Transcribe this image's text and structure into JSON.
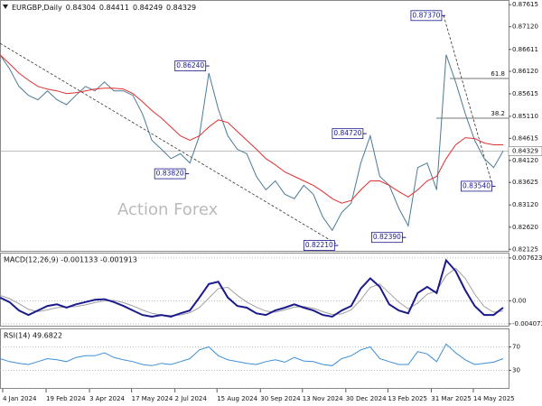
{
  "chart_data": [
    {
      "type": "line",
      "title": "EURGBP,Daily",
      "ohlc": [
        0.84304,
        0.84411,
        0.84249,
        0.84329
      ],
      "watermark": "Action Forex",
      "x": [
        0,
        7,
        14,
        21,
        28,
        35,
        42,
        49,
        56,
        63,
        70,
        77,
        84,
        91,
        98,
        105,
        112,
        119,
        126,
        133,
        140,
        147,
        154,
        161,
        168,
        175,
        182,
        189,
        196,
        203,
        210,
        217,
        224,
        231,
        238,
        245,
        252,
        259,
        266,
        273,
        280,
        287,
        294,
        301,
        308,
        315,
        322,
        329,
        336,
        343,
        350,
        357,
        364,
        371
      ],
      "xlim": [
        0,
        375
      ],
      "xticks": [
        {
          "value": 2,
          "label": "4 Jan 2024"
        },
        {
          "value": 34,
          "label": "19 Feb 2024"
        },
        {
          "value": 66,
          "label": "3 Apr 2024"
        },
        {
          "value": 97,
          "label": "17 May 2024"
        },
        {
          "value": 129,
          "label": "2 Jul 2024"
        },
        {
          "value": 160,
          "label": "15 Aug 2024"
        },
        {
          "value": 192,
          "label": "30 Sep 2024"
        },
        {
          "value": 223,
          "label": "13 Nov 2024"
        },
        {
          "value": 255,
          "label": "30 Dec 2024"
        },
        {
          "value": 286,
          "label": "13 Feb 2025"
        },
        {
          "value": 318,
          "label": "31 Mar 2025"
        },
        {
          "value": 349,
          "label": "14 May 2025"
        }
      ],
      "ylim": [
        0.8209,
        0.877
      ],
      "yticks": [
        0.87615,
        {
          "value": 0.8712,
          "label": "0.87120"
        },
        0.86611,
        {
          "value": 0.8612,
          "label": "0.86120"
        },
        0.85615,
        {
          "value": 0.8511,
          "label": "0.85110"
        },
        0.84615,
        {
          "value": 0.8412,
          "label": "0.84120"
        },
        0.83625,
        {
          "value": 0.8312,
          "label": "0.83120"
        },
        {
          "value": 0.8262,
          "label": "0.82620"
        },
        0.82125
      ],
      "last_price": 0.84329,
      "fib_labels": [
        "61.8",
        "38.2"
      ],
      "series": [
        {
          "color": "#4d7a96",
          "values": [
            0.8649,
            0.8618,
            0.8578,
            0.8558,
            0.8548,
            0.8568,
            0.8548,
            0.8537,
            0.8558,
            0.8578,
            0.8568,
            0.8588,
            0.8568,
            0.8568,
            0.8558,
            0.8517,
            0.8457,
            0.8437,
            0.8416,
            0.8427,
            0.8406,
            0.8467,
            0.8608,
            0.8527,
            0.8467,
            0.8437,
            0.8427,
            0.8376,
            0.8346,
            0.8366,
            0.8336,
            0.8326,
            0.8356,
            0.8336,
            0.8285,
            0.8255,
            0.8295,
            0.8316,
            0.8406,
            0.8467,
            0.8376,
            0.8356,
            0.8305,
            0.8265,
            0.8396,
            0.8406,
            0.8346,
            0.8649,
            0.8588,
            0.8517,
            0.8457,
            0.8416,
            0.8396,
            0.8433
          ]
        },
        {
          "color": "#e03030",
          "values": [
            0.8649,
            0.8629,
            0.8608,
            0.8592,
            0.8578,
            0.8572,
            0.8568,
            0.8562,
            0.8564,
            0.8568,
            0.8572,
            0.8574,
            0.8574,
            0.8572,
            0.8562,
            0.8544,
            0.8524,
            0.8507,
            0.8487,
            0.8467,
            0.8457,
            0.8467,
            0.8487,
            0.8503,
            0.8497,
            0.8477,
            0.8457,
            0.8437,
            0.8416,
            0.8402,
            0.8386,
            0.8376,
            0.8366,
            0.8356,
            0.8342,
            0.8326,
            0.8316,
            0.8322,
            0.8346,
            0.8366,
            0.8366,
            0.8356,
            0.8342,
            0.833,
            0.8346,
            0.8366,
            0.8376,
            0.8416,
            0.8447,
            0.8463,
            0.8461,
            0.8451,
            0.8447,
            0.8447
          ]
        }
      ],
      "annotations": [
        {
          "label": "0.86240",
          "x": 153,
          "y": 0.8624
        },
        {
          "label": "0.83820",
          "x": 138,
          "y": 0.8382
        },
        {
          "label": "0.84720",
          "x": 269,
          "y": 0.8472
        },
        {
          "label": "0.82210",
          "x": 248,
          "y": 0.8221
        },
        {
          "label": "0.82390",
          "x": 298,
          "y": 0.8239
        },
        {
          "label": "0.87370",
          "x": 327,
          "y": 0.8737
        },
        {
          "label": "0.83540",
          "x": 364,
          "y": 0.8354
        }
      ]
    },
    {
      "type": "line",
      "title": "MACD(12,26,9) -0.001133 -0.001913",
      "ylim": [
        -0.0044,
        0.0084
      ],
      "yticks": [
        0.007623,
        {
          "value": 0,
          "label": "0.00"
        },
        -0.004073
      ],
      "series": [
        {
          "color": "#a0a0a0",
          "values": [
            0.001,
            0.0004,
            -0.0005,
            -0.0015,
            -0.0019,
            -0.0016,
            -0.0012,
            -0.0011,
            -0.001,
            -0.0007,
            -0.0003,
            0,
            0.0001,
            -0.0003,
            -0.0009,
            -0.0016,
            -0.0022,
            -0.0025,
            -0.0026,
            -0.0025,
            -0.0021,
            -0.0012,
            0.0005,
            0.0022,
            0.0024,
            0.001,
            -0.0002,
            -0.0011,
            -0.0018,
            -0.002,
            -0.0016,
            -0.0011,
            -0.001,
            -0.0013,
            -0.0019,
            -0.0024,
            -0.0023,
            -0.0016,
            0.0002,
            0.0024,
            0.003,
            0.0014,
            -0.0002,
            -0.0014,
            -0.0004,
            0.0012,
            0.0018,
            0.0045,
            0.0058,
            0.004,
            0.0012,
            -0.001,
            -0.002,
            -0.0018
          ]
        },
        {
          "color": "#1a1a8c",
          "values": [
            0.0006,
            -0.0002,
            -0.0017,
            -0.0025,
            -0.0017,
            -0.0009,
            -0.0006,
            -0.0012,
            -0.0006,
            -0.0002,
            0.0002,
            0.0003,
            -0.0002,
            -0.0009,
            -0.0017,
            -0.0025,
            -0.0028,
            -0.0025,
            -0.0028,
            -0.0022,
            -0.0017,
            0.0006,
            0.003,
            0.0034,
            0.0006,
            -0.0009,
            -0.0012,
            -0.0022,
            -0.0025,
            -0.0017,
            -0.0012,
            -0.0006,
            -0.0012,
            -0.0017,
            -0.0025,
            -0.0028,
            -0.0017,
            -0.0009,
            0.0022,
            0.004,
            0.0025,
            -0.0006,
            -0.0017,
            -0.0022,
            0.0014,
            0.0025,
            0.0014,
            0.0072,
            0.0053,
            0.0019,
            -0.0009,
            -0.0025,
            -0.0025,
            -0.0012
          ]
        }
      ]
    },
    {
      "type": "line",
      "title": "RSI(14) 49.6822",
      "ylim": [
        0,
        100
      ],
      "yticks": [
        70,
        30
      ],
      "series": [
        {
          "color": "#3b8fd8",
          "values": [
            50,
            45,
            42,
            40,
            45,
            50,
            48,
            45,
            52,
            55,
            55,
            60,
            52,
            48,
            45,
            40,
            38,
            42,
            40,
            45,
            50,
            65,
            70,
            55,
            48,
            45,
            42,
            40,
            45,
            48,
            44,
            52,
            46,
            45,
            40,
            38,
            50,
            55,
            65,
            70,
            50,
            45,
            40,
            40,
            62,
            58,
            45,
            75,
            60,
            48,
            40,
            42,
            44,
            50
          ]
        }
      ]
    }
  ]
}
